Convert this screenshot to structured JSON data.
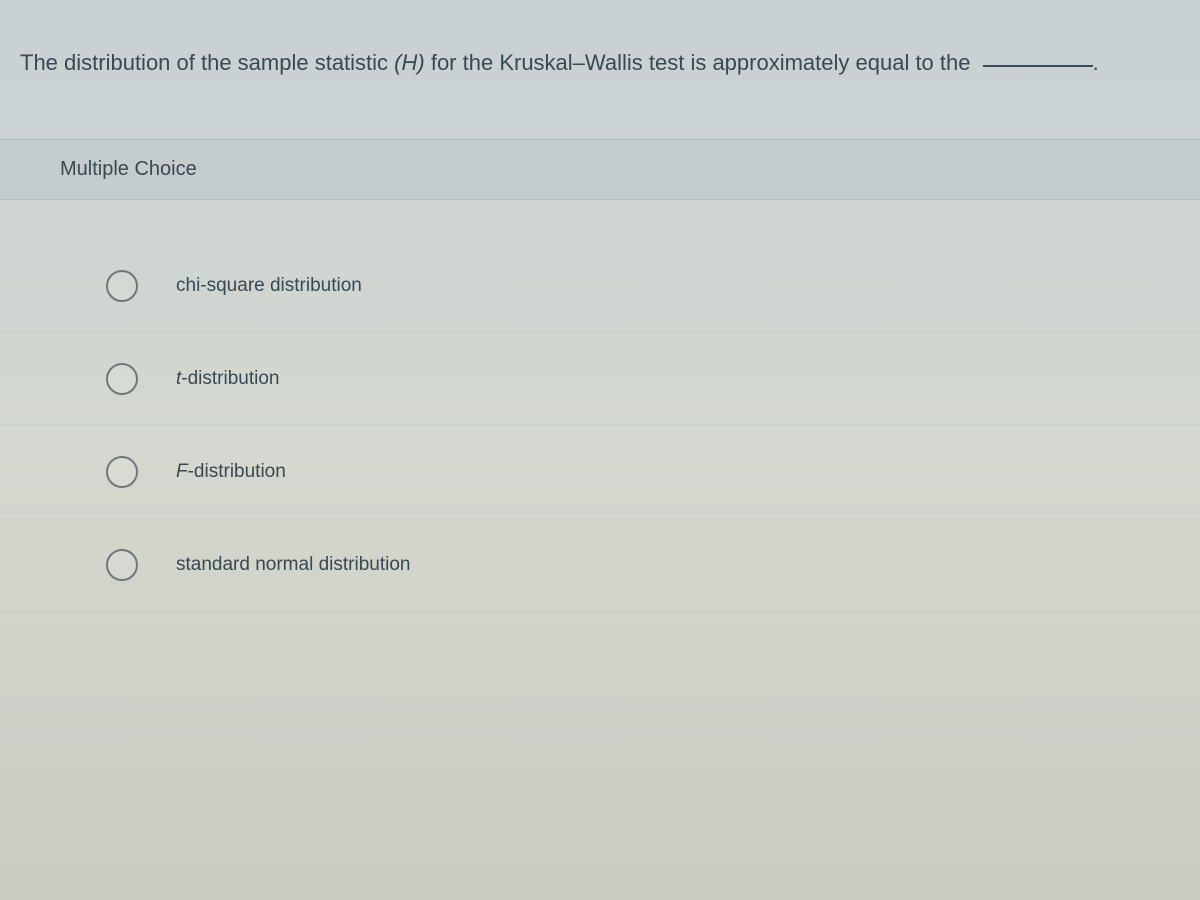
{
  "question": {
    "prefix": "The distribution of the sample statistic ",
    "italic_part": "(H)",
    "suffix": " for the Kruskal–Wallis test is approximately equal to the "
  },
  "section_title": "Multiple Choice",
  "options": [
    {
      "text": "chi-square distribution",
      "italic_prefix": ""
    },
    {
      "text": "-distribution",
      "italic_prefix": "t"
    },
    {
      "text": "-distribution",
      "italic_prefix": "F"
    },
    {
      "text": "standard normal distribution",
      "italic_prefix": ""
    }
  ],
  "styling": {
    "background_gradient_top": "#c8d0d4",
    "background_gradient_mid": "#d4d8d0",
    "background_gradient_bottom": "#c8ccc0",
    "text_color": "#3a4850",
    "section_header_bg": "rgba(190,198,200,0.55)",
    "radio_border": "#707878",
    "question_fontsize": 22,
    "option_fontsize": 19,
    "section_fontsize": 20,
    "radio_diameter": 32
  }
}
